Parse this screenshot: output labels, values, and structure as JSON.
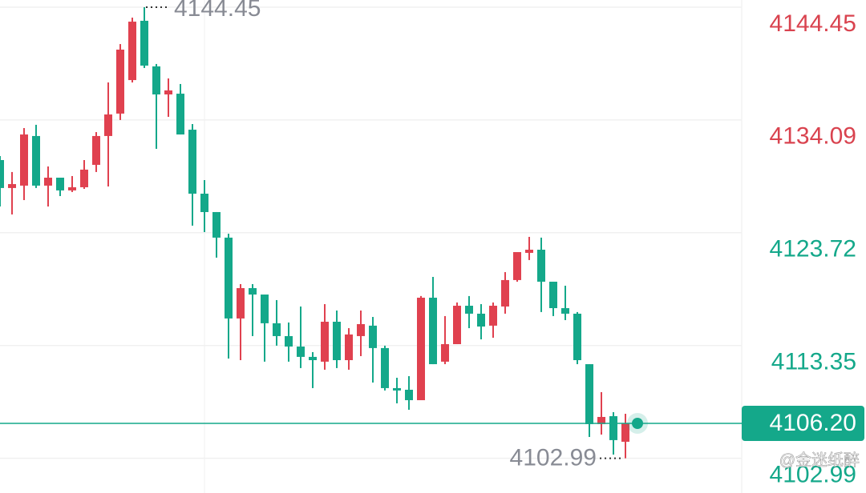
{
  "chart_data": {
    "type": "candlestick",
    "up_color": "#e0414f",
    "down_color": "#14a88a",
    "open": [
      4130.4,
      4127.83,
      4128.05,
      4132.61,
      4128.05,
      4128.78,
      4127.61,
      4127.9,
      4129.96,
      4132.61,
      4134.67,
      4137.75,
      4143.2,
      4139.01,
      4136.43,
      4136.5,
      4133.19,
      4127.31,
      4125.62,
      4123.27,
      4115.84,
      4118.63,
      4118.04,
      4115.4,
      4114.22,
      4113.26,
      4112.31,
      4111.87,
      4115.54,
      4112.01,
      4114.22,
      4115.18,
      4113.12,
      4109.44,
      4109.29,
      4108.33,
      4117.75,
      4111.87,
      4113.48,
      4117.01,
      4116.28,
      4115.18,
      4116.94,
      4119.37,
      4121.87,
      4122.16,
      4119.22,
      4116.79,
      4116.28,
      4111.64,
      4106.13,
      4106.86,
      4104.51
    ],
    "high": [
      4130.77,
      4129.3,
      4133.34,
      4133.64,
      4129.81,
      4128.56,
      4128.93,
      4130.4,
      4132.97,
      4137.53,
      4141.06,
      4143.49,
      4144.45,
      4139.23,
      4137.9,
      4137.39,
      4133.71,
      4128.56,
      4125.62,
      4123.63,
      4119.0,
      4119.0,
      4118.04,
      4117.53,
      4115.47,
      4116.94,
      4112.75,
      4117.16,
      4116.57,
      4114.95,
      4116.57,
      4115.98,
      4113.34,
      4110.39,
      4110.54,
      4117.9,
      4119.66,
      4116.06,
      4117.31,
      4117.9,
      4117.16,
      4117.31,
      4120.1,
      4121.94,
      4123.34,
      4123.27,
      4119.22,
      4118.85,
      4116.43,
      4111.64,
      4109.07,
      4107.23,
      4107.08
    ],
    "low": [
      4126.13,
      4125.4,
      4126.72,
      4127.83,
      4126.13,
      4127.09,
      4127.46,
      4127.75,
      4129.3,
      4127.97,
      4134.08,
      4137.53,
      4138.86,
      4131.43,
      4134.37,
      4132.75,
      4124.37,
      4123.78,
      4121.43,
      4112.16,
      4112.01,
      4114.22,
      4111.87,
      4113.34,
      4111.87,
      4111.28,
      4109.44,
      4111.13,
      4111.28,
      4111.13,
      4112.38,
      4109.95,
      4109.22,
      4108.04,
      4107.45,
      4108.33,
      4111.64,
      4111.64,
      4113.48,
      4114.95,
      4113.92,
      4114.07,
      4116.28,
      4119.22,
      4121.21,
      4116.43,
      4116.06,
      4115.69,
      4111.64,
      4104.95,
      4105.17,
      4103.33,
      4102.99
    ],
    "close": [
      4127.83,
      4128.19,
      4132.75,
      4128.05,
      4128.78,
      4127.61,
      4127.9,
      4129.52,
      4132.61,
      4134.59,
      4140.55,
      4143.12,
      4139.08,
      4136.43,
      4136.8,
      4132.75,
      4127.31,
      4125.62,
      4123.27,
      4115.84,
      4118.63,
      4118.04,
      4115.4,
      4114.22,
      4113.26,
      4112.31,
      4112.01,
      4115.54,
      4112.01,
      4114.37,
      4115.32,
      4113.12,
      4109.44,
      4109.22,
      4108.33,
      4117.75,
      4111.64,
      4113.48,
      4117.01,
      4116.28,
      4115.1,
      4117.01,
      4119.37,
      4121.94,
      4122.16,
      4119.22,
      4116.79,
      4116.28,
      4112.01,
      4106.13,
      4106.79,
      4104.66,
      4106.2
    ],
    "ylim": [
      4099.8,
      4145.11
    ],
    "yticks": [
      4144.45,
      4134.09,
      4123.72,
      4113.35,
      4102.99
    ],
    "ytick_colors": [
      "#d9434f",
      "#d9434f",
      "#14a88a",
      "#14a88a",
      "#14a88a"
    ],
    "grid": true,
    "max_marker": 4144.45,
    "min_marker": 4102.99,
    "last_price": {
      "value": 4106.2,
      "label": "4106.20"
    },
    "last_price_color": "#14a88a",
    "watermark": "@金迷纸醉"
  }
}
